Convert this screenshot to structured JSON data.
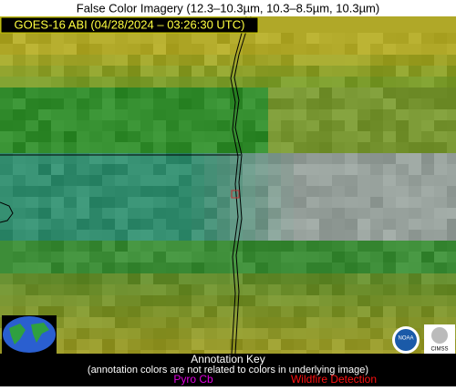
{
  "header": {
    "title": "False Color Imagery (12.3–10.3µm, 10.3–8.5µm, 10.3µm)"
  },
  "image": {
    "label": "GOES-16 ABI (04/28/2024 – 03:26:30 UTC)"
  },
  "annotation_key": {
    "title": "Annotation Key",
    "note": "(annotation colors are not related to colors in underlying image)",
    "items": [
      "Pyro Cb",
      "Wildfire Detection"
    ]
  },
  "logos": [
    "NOAA",
    "CIMSS"
  ]
}
